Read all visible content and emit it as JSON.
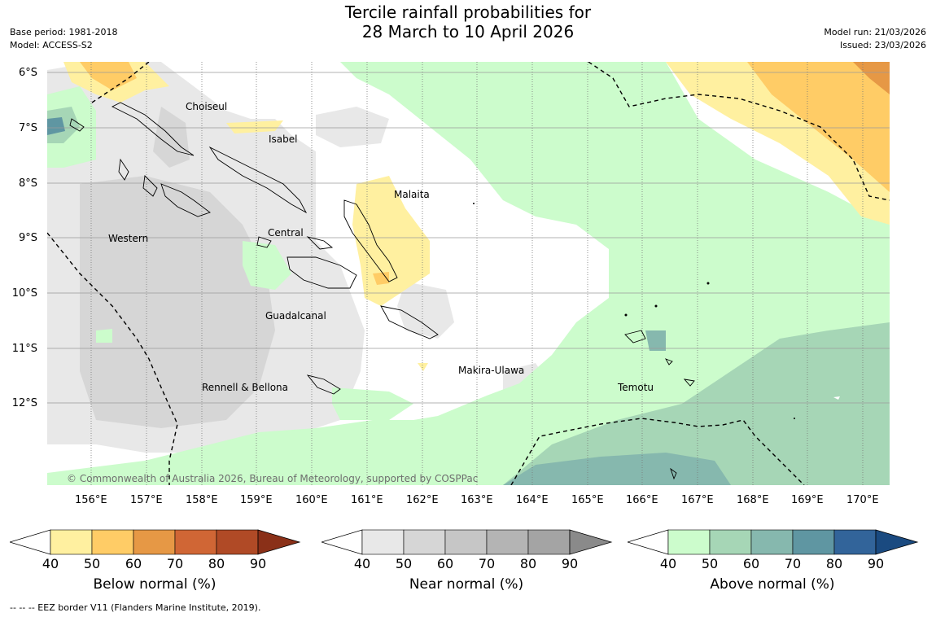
{
  "title": {
    "line1": "Tercile rainfall probabilities for",
    "line2": "28 March to 10 April 2026"
  },
  "meta_left": {
    "base_period": "Base period: 1981-2018",
    "model": "Model: ACCESS-S2"
  },
  "meta_right": {
    "model_run": "Model run: 21/03/2026",
    "issued": "Issued: 23/03/2026"
  },
  "lat_labels": [
    "6°S",
    "7°S",
    "8°S",
    "9°S",
    "10°S",
    "11°S",
    "12°S"
  ],
  "lon_labels": [
    "156°E",
    "157°E",
    "158°E",
    "159°E",
    "160°E",
    "161°E",
    "162°E",
    "163°E",
    "164°E",
    "165°E",
    "166°E",
    "167°E",
    "168°E",
    "169°E",
    "170°E"
  ],
  "provinces": {
    "choiseul": "Choiseul",
    "isabel": "Isabel",
    "malaita": "Malaita",
    "western": "Western",
    "central": "Central",
    "guadalcanal": "Guadalcanal",
    "rennell": "Rennell & Bellona",
    "makira": "Makira-Ulawa",
    "temotu": "Temotu"
  },
  "copyright": "© Commonwealth of Australia 2026, Bureau of Meteorology, supported by COSPPac",
  "colorbars": [
    {
      "title": "Below normal (%)",
      "ticks": [
        "40",
        "50",
        "60",
        "70",
        "80",
        "90"
      ],
      "colors": [
        "#fff0a0",
        "#ffcc66",
        "#e69845",
        "#d06635",
        "#b04a26",
        "#8a3018"
      ]
    },
    {
      "title": "Near normal (%)",
      "ticks": [
        "40",
        "50",
        "60",
        "70",
        "80",
        "90"
      ],
      "colors": [
        "#e8e8e8",
        "#d6d6d6",
        "#c6c6c6",
        "#b4b4b4",
        "#a4a4a4",
        "#8a8a8a"
      ]
    },
    {
      "title": "Above normal (%)",
      "ticks": [
        "40",
        "50",
        "60",
        "70",
        "80",
        "90"
      ],
      "colors": [
        "#ccfccc",
        "#a6d6b6",
        "#86b8ae",
        "#5f96a2",
        "#32649a",
        "#1a4a80"
      ]
    }
  ],
  "footer": "-- -- -- EEZ border V11 (Flanders Marine Institute, 2019)."
}
